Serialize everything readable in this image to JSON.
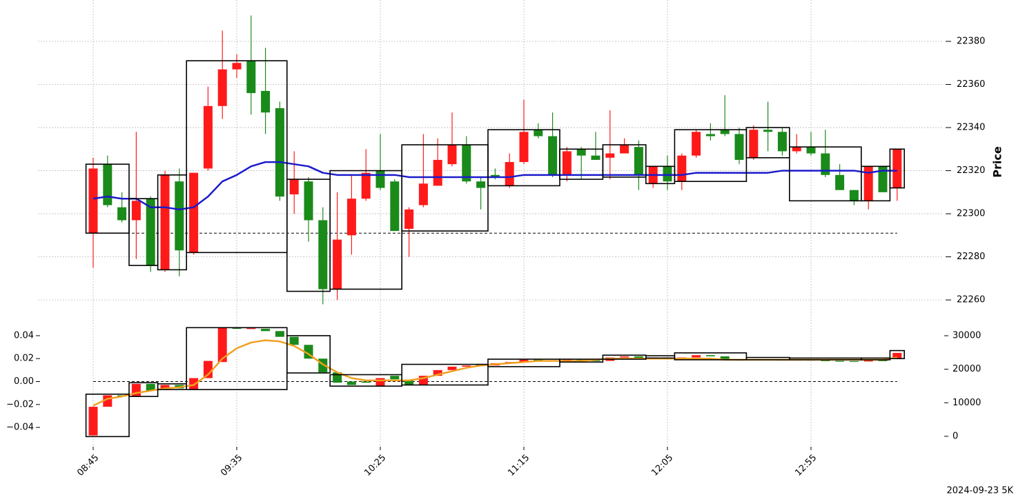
{
  "chart_data": [
    {
      "type": "candlestick",
      "ylabel": "Price",
      "up_color": "#ff1a1a",
      "down_color": "#1a8a1a",
      "ylim": [
        22254.6,
        22399.2
      ],
      "yticks": [
        22260,
        22280,
        22300,
        22320,
        22340,
        22360,
        22380
      ],
      "grid": true,
      "open": [
        22291,
        22323,
        22303,
        22297,
        22307,
        22274,
        22315,
        22282,
        22321,
        22350,
        22367,
        22371,
        22357,
        22349,
        22309,
        22315,
        22297,
        22265,
        22290,
        22307,
        22320,
        22315,
        22293,
        22304,
        22313,
        22323,
        22332,
        22315,
        22318,
        22313,
        22324,
        22339,
        22336,
        22318,
        22330,
        22327,
        22326,
        22328,
        22331,
        22314,
        22322,
        22315,
        22327,
        22337,
        22339,
        22337,
        22326,
        22339,
        22338,
        22329,
        22331,
        22328,
        22318,
        22311,
        22306,
        22322,
        22312
      ],
      "high": [
        22326,
        22327,
        22310,
        22338,
        22308,
        22320,
        22321,
        22319,
        22359,
        22385,
        22374,
        22392,
        22377,
        22352,
        22329,
        22317,
        22303,
        22310,
        22318,
        22330,
        22337,
        22316,
        22303,
        22337,
        22335,
        22347,
        22336,
        22317,
        22321,
        22328,
        22353,
        22342,
        22347,
        22331,
        22331,
        22338,
        22348,
        22335,
        22334,
        22322,
        22327,
        22328,
        22339,
        22342,
        22355,
        22340,
        22341,
        22352,
        22340,
        22337,
        22338,
        22339,
        22323,
        22311,
        22322,
        22322,
        22330
      ],
      "low": [
        22275,
        22303,
        22296,
        22279,
        22273,
        22273,
        22271,
        22281,
        22320,
        22344,
        22363,
        22346,
        22337,
        22306,
        22300,
        22287,
        22258,
        22260,
        22281,
        22306,
        22311,
        22292,
        22280,
        22303,
        22313,
        22322,
        22314,
        22302,
        22316,
        22312,
        22323,
        22335,
        22317,
        22315,
        22316,
        22325,
        22316,
        22328,
        22311,
        22312,
        22311,
        22311,
        22326,
        22334,
        22336,
        22323,
        22325,
        22329,
        22327,
        22328,
        22327,
        22317,
        22311,
        22304,
        22302,
        22310,
        22306
      ],
      "close": [
        22321,
        22304,
        22297,
        22306,
        22276,
        22318,
        22283,
        22319,
        22350,
        22367,
        22370,
        22356,
        22347,
        22308,
        22316,
        22297,
        22265,
        22288,
        22307,
        22319,
        22312,
        22292,
        22302,
        22314,
        22325,
        22332,
        22315,
        22312,
        22317,
        22324,
        22338,
        22336,
        22318,
        22329,
        22327,
        22325,
        22328,
        22332,
        22318,
        22322,
        22315,
        22327,
        22338,
        22336,
        22337,
        22325,
        22339,
        22338,
        22329,
        22331,
        22328,
        22318,
        22311,
        22306,
        22322,
        22310,
        22330
      ],
      "lines": [
        {
          "color": "#1a1acc",
          "values": [
            22307,
            22308,
            22307,
            22307,
            22303,
            22303,
            22302,
            22303,
            22308,
            22315,
            22318,
            22322,
            22324,
            22324,
            22323,
            22322,
            22319,
            22318,
            22318,
            22318,
            22318,
            22318,
            22317,
            22317,
            22317,
            22317,
            22317,
            22317,
            22317,
            22317,
            22318,
            22318,
            22318,
            22318,
            22318,
            22318,
            22318,
            22318,
            22318,
            22318,
            22318,
            22318,
            22319,
            22319,
            22319,
            22319,
            22319,
            22319,
            22320,
            22320,
            22320,
            22320,
            22320,
            22320,
            22319,
            22320,
            22320
          ]
        }
      ],
      "hline": 22291,
      "boxes": [
        {
          "from": 0,
          "to": 2,
          "high": 22323,
          "low": 22291
        },
        {
          "from": 3,
          "to": 4,
          "high": 22307,
          "low": 22276
        },
        {
          "from": 5,
          "to": 6,
          "high": 22318,
          "low": 22274
        },
        {
          "from": 7,
          "to": 13,
          "high": 22371,
          "low": 22282
        },
        {
          "from": 14,
          "to": 16,
          "high": 22316,
          "low": 22264
        },
        {
          "from": 17,
          "to": 21,
          "high": 22320,
          "low": 22265
        },
        {
          "from": 22,
          "to": 27,
          "high": 22332,
          "low": 22292
        },
        {
          "from": 28,
          "to": 32,
          "high": 22339,
          "low": 22313
        },
        {
          "from": 33,
          "to": 35,
          "high": 22330,
          "low": 22316
        },
        {
          "from": 36,
          "to": 38,
          "high": 22332,
          "low": 22317
        },
        {
          "from": 39,
          "to": 40,
          "high": 22322,
          "low": 22314
        },
        {
          "from": 41,
          "to": 45,
          "high": 22339,
          "low": 22315
        },
        {
          "from": 46,
          "to": 48,
          "high": 22340,
          "low": 22326
        },
        {
          "from": 49,
          "to": 53,
          "high": 22331,
          "low": 22306
        },
        {
          "from": 54,
          "to": 55,
          "high": 22322,
          "low": 22306
        },
        {
          "from": 56,
          "to": 56,
          "high": 22330,
          "low": 22312
        }
      ]
    },
    {
      "type": "candlestick",
      "note": "2024-09-23 5K",
      "up_color": "#ff1a1a",
      "down_color": "#1a8a1a",
      "categories": [
        "08:45",
        null,
        null,
        null,
        null,
        null,
        null,
        null,
        null,
        null,
        "09:35",
        null,
        null,
        null,
        null,
        null,
        null,
        null,
        null,
        null,
        "10:25",
        null,
        null,
        null,
        null,
        null,
        null,
        null,
        null,
        null,
        "11:15",
        null,
        null,
        null,
        null,
        null,
        null,
        null,
        null,
        null,
        "12:05",
        null,
        null,
        null,
        null,
        null,
        null,
        null,
        null,
        null,
        "12:55",
        null,
        null,
        null,
        null,
        null,
        null
      ],
      "ylim": [
        -0.0568,
        0.0502
      ],
      "yticks": [
        {
          "value": -0.04,
          "label": "−0.04"
        },
        {
          "value": -0.02,
          "label": "−0.02"
        },
        {
          "value": 0,
          "label": "0.00"
        },
        {
          "value": 0.02,
          "label": "0.02"
        },
        {
          "value": 0.04,
          "label": "0.04"
        }
      ],
      "y2lim": [
        -3100,
        33500
      ],
      "y2ticks": [
        0,
        10000,
        20000,
        30000
      ],
      "open": [
        -0.047,
        -0.022,
        -0.012,
        -0.013,
        -0.002,
        -0.007,
        -0.003,
        -0.007,
        0.003,
        0.017,
        0.047,
        0.046,
        0.046,
        0.044,
        0.039,
        0.032,
        0.02,
        0.008,
        0,
        0,
        -0.004,
        0.005,
        0.001,
        -0.003,
        0.005,
        0.01,
        0.013,
        0.015,
        0.014,
        0.016,
        0.017,
        0.019,
        0.0185,
        0.018,
        0.019,
        0.0185,
        0.018,
        0.021,
        0.022,
        0.0205,
        0.021,
        0.0205,
        0.021,
        0.023,
        0.022,
        0.019,
        0.0185,
        0.0195,
        0.019,
        0.0185,
        0.019,
        0.0185,
        0.018,
        0.0178,
        0.0175,
        0.0185,
        0.02
      ],
      "close": [
        -0.022,
        -0.012,
        -0.013,
        -0.002,
        -0.008,
        -0.003,
        -0.006,
        0.003,
        0.018,
        0.047,
        0.046,
        0.0465,
        0.044,
        0.039,
        0.032,
        0.02,
        0.008,
        -0.001,
        -0.003,
        -0.001,
        0.003,
        0.002,
        -0.003,
        0.005,
        0.01,
        0.013,
        0.014,
        0.014,
        0.016,
        0.017,
        0.019,
        0.0185,
        0.018,
        0.019,
        0.0185,
        0.018,
        0.021,
        0.022,
        0.0205,
        0.021,
        0.0205,
        0.021,
        0.023,
        0.022,
        0.019,
        0.0185,
        0.0195,
        0.019,
        0.0185,
        0.019,
        0.0185,
        0.018,
        0.0178,
        0.0175,
        0.0185,
        0.018,
        0.025
      ],
      "lines": [
        {
          "color": "#f0a020",
          "values": [
            -0.021,
            -0.015,
            -0.013,
            -0.01,
            -0.008,
            -0.006,
            -0.005,
            -0.003,
            0.006,
            0.02,
            0.029,
            0.034,
            0.036,
            0.035,
            0.031,
            0.024,
            0.015,
            0.008,
            0.003,
            0.001,
            0.001,
            0.001,
            0.001,
            0.003,
            0.006,
            0.009,
            0.012,
            0.014,
            0.015,
            0.016,
            0.017,
            0.018,
            0.018,
            0.018,
            0.018,
            0.019,
            0.02,
            0.02,
            0.02,
            0.02,
            0.02,
            0.02,
            0.02,
            0.02,
            0.019,
            0.019,
            0.019,
            0.019,
            0.019,
            0.019,
            0.019,
            0.019,
            0.019,
            0.019,
            0.019,
            0.019,
            0.021
          ]
        }
      ],
      "hline": 0,
      "boxes": [
        {
          "from": 0,
          "to": 2,
          "high": -0.011,
          "low": -0.048
        },
        {
          "from": 3,
          "to": 4,
          "high": -0.001,
          "low": -0.013
        },
        {
          "from": 5,
          "to": 6,
          "high": -0.002,
          "low": -0.007
        },
        {
          "from": 7,
          "to": 13,
          "high": 0.047,
          "low": -0.007
        },
        {
          "from": 14,
          "to": 16,
          "high": 0.04,
          "low": 0.0075
        },
        {
          "from": 17,
          "to": 21,
          "high": 0.006,
          "low": -0.004
        },
        {
          "from": 22,
          "to": 27,
          "high": 0.015,
          "low": -0.003
        },
        {
          "from": 28,
          "to": 32,
          "high": 0.0195,
          "low": 0.013
        },
        {
          "from": 33,
          "to": 35,
          "high": 0.0195,
          "low": 0.017
        },
        {
          "from": 36,
          "to": 38,
          "high": 0.023,
          "low": 0.0195
        },
        {
          "from": 39,
          "to": 40,
          "high": 0.0225,
          "low": 0.0205
        },
        {
          "from": 41,
          "to": 45,
          "high": 0.025,
          "low": 0.019
        },
        {
          "from": 46,
          "to": 48,
          "high": 0.021,
          "low": 0.019
        },
        {
          "from": 49,
          "to": 53,
          "high": 0.0205,
          "low": 0.019
        },
        {
          "from": 54,
          "to": 55,
          "high": 0.0205,
          "low": 0.019
        },
        {
          "from": 56,
          "to": 56,
          "high": 0.027,
          "low": 0.02
        }
      ]
    }
  ]
}
